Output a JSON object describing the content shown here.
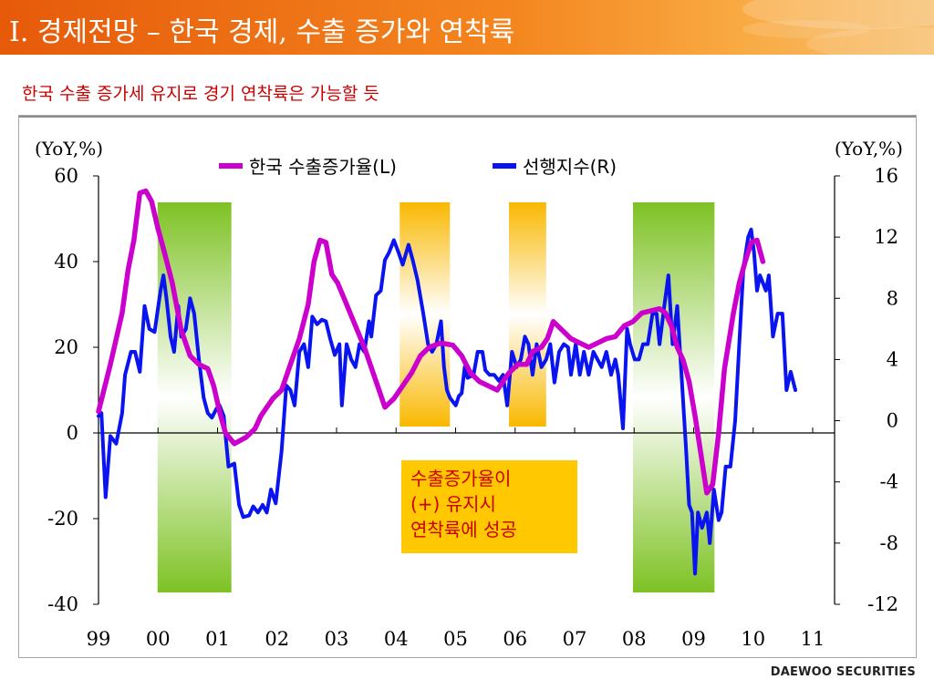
{
  "header": {
    "title": "I. 경제전망 – 한국 경제, 수출 증가와 연착륙"
  },
  "subtitle": "한국 수출 증가세 유지로 경기 연착륙은 가능할 듯",
  "footer": {
    "logo": "DAEWOO SECURITIES"
  },
  "colors": {
    "header": "#ee7418",
    "subtitle": "#cc0000",
    "exports_line": "#cc00cc",
    "leading_line": "#0a14f0",
    "green_band": "#7ec224",
    "orange_band": "#f9b800",
    "callout_bg": "#ffc800",
    "callout_text": "#cc0000"
  },
  "chart_data": {
    "type": "line",
    "left_axis": {
      "label": "(YoY,%)",
      "ylim": [
        -40,
        60
      ],
      "ticks": [
        "60",
        "40",
        "20",
        "0",
        "-20",
        "-40"
      ]
    },
    "right_axis": {
      "label": "(YoY,%)",
      "ylim": [
        -12,
        16
      ],
      "ticks": [
        "16",
        "12",
        "8",
        "4",
        "0",
        "-4",
        "-8",
        "-12"
      ]
    },
    "x_ticks": [
      "99",
      "00",
      "01",
      "02",
      "03",
      "04",
      "05",
      "06",
      "07",
      "08",
      "09",
      "10",
      "11"
    ],
    "x_range": [
      1999.0,
      2011.0
    ],
    "legend": {
      "position": "top-center"
    },
    "series": [
      {
        "name": "한국 수출증가율(L)",
        "axis": "left",
        "color": "#cc00cc",
        "points": [
          [
            1999.0,
            5
          ],
          [
            1999.2,
            16
          ],
          [
            1999.4,
            28
          ],
          [
            1999.5,
            38
          ],
          [
            1999.6,
            45
          ],
          [
            1999.7,
            56
          ],
          [
            1999.8,
            56.5
          ],
          [
            1999.9,
            54
          ],
          [
            2000.0,
            48
          ],
          [
            2000.1,
            43
          ],
          [
            2000.25,
            35
          ],
          [
            2000.4,
            24
          ],
          [
            2000.55,
            18
          ],
          [
            2000.7,
            16
          ],
          [
            2000.85,
            15
          ],
          [
            2000.95,
            11
          ],
          [
            2001.05,
            5
          ],
          [
            2001.15,
            0
          ],
          [
            2001.3,
            -2.5
          ],
          [
            2001.5,
            -1
          ],
          [
            2001.65,
            1
          ],
          [
            2001.75,
            4
          ],
          [
            2001.95,
            8
          ],
          [
            2002.1,
            10
          ],
          [
            2002.25,
            16
          ],
          [
            2002.4,
            22
          ],
          [
            2002.55,
            30
          ],
          [
            2002.65,
            40
          ],
          [
            2002.75,
            45
          ],
          [
            2002.85,
            44.5
          ],
          [
            2002.95,
            37
          ],
          [
            2003.05,
            35
          ],
          [
            2003.2,
            30
          ],
          [
            2003.35,
            25
          ],
          [
            2003.5,
            20
          ],
          [
            2003.65,
            14
          ],
          [
            2003.75,
            10
          ],
          [
            2003.85,
            6
          ],
          [
            2004.0,
            8
          ],
          [
            2004.15,
            11
          ],
          [
            2004.3,
            14
          ],
          [
            2004.45,
            18
          ],
          [
            2004.6,
            20
          ],
          [
            2004.8,
            21
          ],
          [
            2005.0,
            20.5
          ],
          [
            2005.15,
            18
          ],
          [
            2005.3,
            14
          ],
          [
            2005.45,
            12
          ],
          [
            2005.6,
            11
          ],
          [
            2005.75,
            10
          ],
          [
            2005.85,
            12
          ],
          [
            2005.95,
            14
          ],
          [
            2006.1,
            16
          ],
          [
            2006.25,
            16
          ],
          [
            2006.35,
            19
          ],
          [
            2006.5,
            20
          ],
          [
            2006.6,
            22
          ],
          [
            2006.7,
            26
          ],
          [
            2006.85,
            24
          ],
          [
            2007.0,
            22
          ],
          [
            2007.15,
            21
          ],
          [
            2007.3,
            20
          ],
          [
            2007.45,
            21
          ],
          [
            2007.6,
            22
          ],
          [
            2007.75,
            22.5
          ],
          [
            2007.9,
            25
          ],
          [
            2008.05,
            26
          ],
          [
            2008.2,
            28
          ],
          [
            2008.35,
            28.5
          ],
          [
            2008.5,
            29
          ],
          [
            2008.6,
            28
          ],
          [
            2008.7,
            25
          ],
          [
            2008.8,
            20
          ],
          [
            2008.9,
            17
          ],
          [
            2009.0,
            12
          ],
          [
            2009.1,
            4
          ],
          [
            2009.2,
            -5
          ],
          [
            2009.3,
            -14
          ],
          [
            2009.4,
            -12
          ],
          [
            2009.5,
            0
          ],
          [
            2009.6,
            15
          ],
          [
            2009.75,
            28
          ],
          [
            2009.85,
            35
          ],
          [
            2009.95,
            40
          ],
          [
            2010.05,
            44.5
          ],
          [
            2010.15,
            45
          ],
          [
            2010.25,
            40
          ]
        ]
      },
      {
        "name": "선행지수(R)",
        "axis": "right",
        "color": "#0a14f0",
        "points": [
          [
            1999.0,
            0.3
          ],
          [
            1999.05,
            0.5
          ],
          [
            1999.12,
            -5
          ],
          [
            1999.2,
            -1
          ],
          [
            1999.3,
            -1.5
          ],
          [
            1999.4,
            0.5
          ],
          [
            1999.45,
            3
          ],
          [
            1999.55,
            4.5
          ],
          [
            1999.62,
            4.5
          ],
          [
            1999.7,
            3.2
          ],
          [
            1999.78,
            7.5
          ],
          [
            1999.86,
            6
          ],
          [
            1999.95,
            5.8
          ],
          [
            2000.05,
            8.5
          ],
          [
            2000.1,
            9.5
          ],
          [
            2000.15,
            8
          ],
          [
            2000.22,
            5.5
          ],
          [
            2000.28,
            4.5
          ],
          [
            2000.35,
            7.5
          ],
          [
            2000.4,
            5.5
          ],
          [
            2000.48,
            6
          ],
          [
            2000.55,
            8
          ],
          [
            2000.62,
            7
          ],
          [
            2000.7,
            4
          ],
          [
            2000.78,
            1.5
          ],
          [
            2000.85,
            0.5
          ],
          [
            2000.92,
            0.2
          ],
          [
            2001.0,
            0.8
          ],
          [
            2001.05,
            1
          ],
          [
            2001.12,
            0.3
          ],
          [
            2001.2,
            -3
          ],
          [
            2001.3,
            -2.8
          ],
          [
            2001.38,
            -5.5
          ],
          [
            2001.45,
            -6.3
          ],
          [
            2001.55,
            -6.2
          ],
          [
            2001.62,
            -5.6
          ],
          [
            2001.7,
            -6
          ],
          [
            2001.78,
            -5.5
          ],
          [
            2001.85,
            -6
          ],
          [
            2001.92,
            -4.5
          ],
          [
            2002.0,
            -5.4
          ],
          [
            2002.1,
            -2
          ],
          [
            2002.18,
            2.3
          ],
          [
            2002.25,
            2
          ],
          [
            2002.32,
            1
          ],
          [
            2002.4,
            4.5
          ],
          [
            2002.48,
            5
          ],
          [
            2002.55,
            3.5
          ],
          [
            2002.62,
            6.8
          ],
          [
            2002.7,
            6.3
          ],
          [
            2002.78,
            6.6
          ],
          [
            2002.85,
            6.5
          ],
          [
            2002.92,
            5.4
          ],
          [
            2003.0,
            4.3
          ],
          [
            2003.08,
            5
          ],
          [
            2003.12,
            1
          ],
          [
            2003.2,
            5
          ],
          [
            2003.28,
            4
          ],
          [
            2003.35,
            3.5
          ],
          [
            2003.42,
            5
          ],
          [
            2003.5,
            4.5
          ],
          [
            2003.58,
            6.5
          ],
          [
            2003.62,
            5.5
          ],
          [
            2003.7,
            8.2
          ],
          [
            2003.78,
            8.5
          ],
          [
            2003.85,
            10.5
          ],
          [
            2003.92,
            11
          ],
          [
            2004.0,
            11.8
          ],
          [
            2004.08,
            11
          ],
          [
            2004.15,
            10.2
          ],
          [
            2004.25,
            11.5
          ],
          [
            2004.32,
            10.5
          ],
          [
            2004.4,
            9.2
          ],
          [
            2004.5,
            7
          ],
          [
            2004.58,
            5
          ],
          [
            2004.65,
            4.5
          ],
          [
            2004.72,
            5
          ],
          [
            2004.8,
            6.5
          ],
          [
            2004.85,
            3.5
          ],
          [
            2004.9,
            2
          ],
          [
            2004.95,
            1.5
          ],
          [
            2005.05,
            1
          ],
          [
            2005.1,
            1.6
          ],
          [
            2005.15,
            1.8
          ],
          [
            2005.2,
            3.5
          ],
          [
            2005.25,
            2.8
          ],
          [
            2005.35,
            3
          ],
          [
            2005.42,
            4.5
          ],
          [
            2005.5,
            4.5
          ],
          [
            2005.55,
            3.3
          ],
          [
            2005.62,
            3
          ],
          [
            2005.7,
            3
          ],
          [
            2005.78,
            2.6
          ],
          [
            2005.85,
            3
          ],
          [
            2005.92,
            1
          ],
          [
            2006.0,
            4.5
          ],
          [
            2006.08,
            3.5
          ],
          [
            2006.15,
            4
          ],
          [
            2006.22,
            5.5
          ],
          [
            2006.28,
            5
          ],
          [
            2006.35,
            3
          ],
          [
            2006.42,
            5
          ],
          [
            2006.5,
            3.5
          ],
          [
            2006.58,
            4
          ],
          [
            2006.65,
            5
          ],
          [
            2006.72,
            2.5
          ],
          [
            2006.8,
            4.5
          ],
          [
            2006.88,
            5
          ],
          [
            2006.95,
            4.8
          ],
          [
            2007.0,
            3
          ],
          [
            2007.08,
            5
          ],
          [
            2007.15,
            3
          ],
          [
            2007.22,
            4.5
          ],
          [
            2007.3,
            3
          ],
          [
            2007.38,
            4.5
          ],
          [
            2007.45,
            4
          ],
          [
            2007.52,
            3.5
          ],
          [
            2007.6,
            4.5
          ],
          [
            2007.68,
            3
          ],
          [
            2007.75,
            4
          ],
          [
            2007.8,
            3
          ],
          [
            2007.88,
            -0.5
          ],
          [
            2007.95,
            6
          ],
          [
            2008.0,
            5
          ],
          [
            2008.08,
            4
          ],
          [
            2008.15,
            4
          ],
          [
            2008.22,
            5
          ],
          [
            2008.3,
            5
          ],
          [
            2008.38,
            7
          ],
          [
            2008.45,
            7
          ],
          [
            2008.5,
            5
          ],
          [
            2008.58,
            7.5
          ],
          [
            2008.65,
            9.5
          ],
          [
            2008.72,
            5
          ],
          [
            2008.8,
            7.5
          ],
          [
            2008.88,
            2.5
          ],
          [
            2008.95,
            -2
          ],
          [
            2009.0,
            -5.5
          ],
          [
            2009.05,
            -6
          ],
          [
            2009.1,
            -10
          ],
          [
            2009.15,
            -6
          ],
          [
            2009.22,
            -7
          ],
          [
            2009.3,
            -6
          ],
          [
            2009.35,
            -8
          ],
          [
            2009.42,
            -4.5
          ],
          [
            2009.5,
            -6.5
          ],
          [
            2009.55,
            -6
          ],
          [
            2009.62,
            -3
          ],
          [
            2009.7,
            -3
          ],
          [
            2009.78,
            0
          ],
          [
            2009.85,
            5
          ],
          [
            2009.92,
            10
          ],
          [
            2010.0,
            12
          ],
          [
            2010.05,
            12.5
          ],
          [
            2010.1,
            11
          ],
          [
            2010.15,
            8.5
          ],
          [
            2010.2,
            9.5
          ],
          [
            2010.3,
            8.5
          ],
          [
            2010.35,
            9.5
          ],
          [
            2010.42,
            5.5
          ],
          [
            2010.5,
            7
          ],
          [
            2010.58,
            7
          ],
          [
            2010.65,
            2
          ],
          [
            2010.72,
            3.2
          ],
          [
            2010.8,
            2
          ]
        ]
      }
    ],
    "shaded_periods": [
      {
        "color": "green",
        "start": 2000.0,
        "end": 2001.25
      },
      {
        "color": "orange",
        "start": 2004.1,
        "end": 2004.95
      },
      {
        "color": "orange",
        "start": 2005.95,
        "end": 2006.58
      },
      {
        "color": "green",
        "start": 2008.05,
        "end": 2009.43
      }
    ],
    "annotation": {
      "lines": [
        "수출증가율이",
        "(+) 유지시",
        "연착륙에 성공"
      ]
    }
  }
}
